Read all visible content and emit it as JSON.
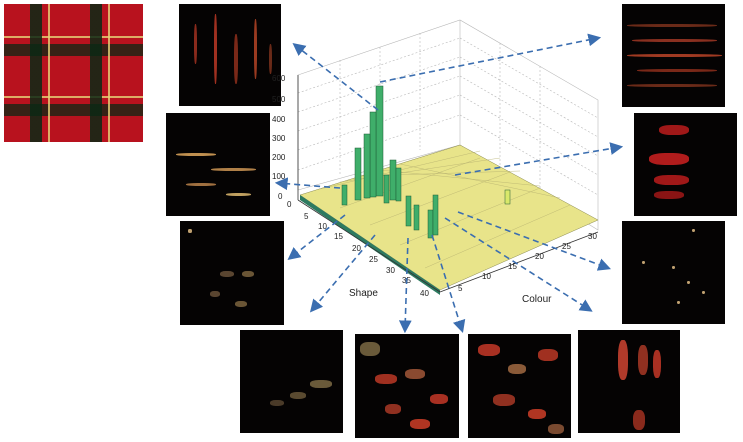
{
  "figure": {
    "texture_image": "red-tartan-fabric-sample",
    "axis_labels": {
      "shape": "Shape",
      "colour": "Colour"
    },
    "z_ticks": [
      "0",
      "100",
      "200",
      "300",
      "400",
      "500",
      "600"
    ],
    "shape_ticks": [
      "0",
      "5",
      "10",
      "15",
      "20",
      "25",
      "30",
      "35",
      "40"
    ],
    "colour_ticks": [
      "5",
      "10",
      "15",
      "20",
      "25",
      "30"
    ],
    "colors": {
      "bars": "#3fae6a",
      "surface": "#e8e48a",
      "arrows": "#3b6eb0",
      "thumb_bg": "#050303"
    }
  }
}
